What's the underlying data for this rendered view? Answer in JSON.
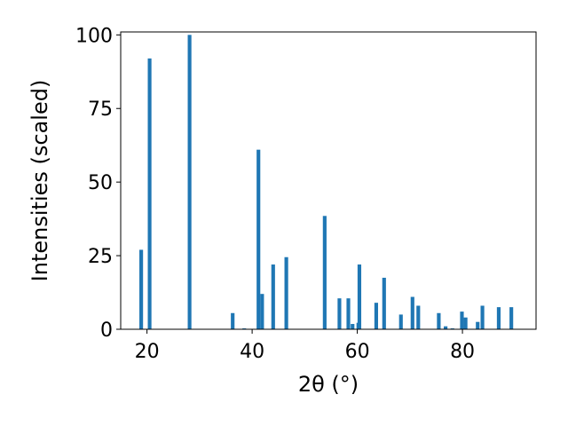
{
  "chart_data": {
    "type": "bar",
    "xlabel": "2θ (°)",
    "ylabel": "Intensities (scaled)",
    "xlim": [
      15,
      94
    ],
    "ylim": [
      0,
      101
    ],
    "x_ticks": [
      20,
      40,
      60,
      80
    ],
    "y_ticks": [
      0,
      25,
      50,
      75,
      100
    ],
    "bar_width": 0.7,
    "color": "#1f77b4",
    "grid": false,
    "legend": "none",
    "series": [
      {
        "x": [
          18.9,
          20.5,
          28.1,
          36.3,
          38.5,
          41.2,
          41.9,
          44.0,
          46.5,
          53.8,
          56.6,
          58.3,
          59.1,
          60.2,
          60.4,
          63.6,
          65.1,
          68.3,
          70.5,
          71.6,
          75.5,
          76.8,
          78.1,
          79.9,
          80.6,
          82.9,
          83.8,
          86.9,
          89.3
        ],
        "values": [
          27,
          92,
          100,
          5.5,
          0.3,
          61,
          12,
          22,
          24.5,
          38.5,
          10.5,
          10.5,
          1.8,
          2.2,
          22,
          9,
          17.5,
          5,
          11,
          8,
          5.5,
          1,
          0.3,
          6,
          4,
          2.5,
          8,
          7.5,
          7.5
        ]
      }
    ]
  }
}
